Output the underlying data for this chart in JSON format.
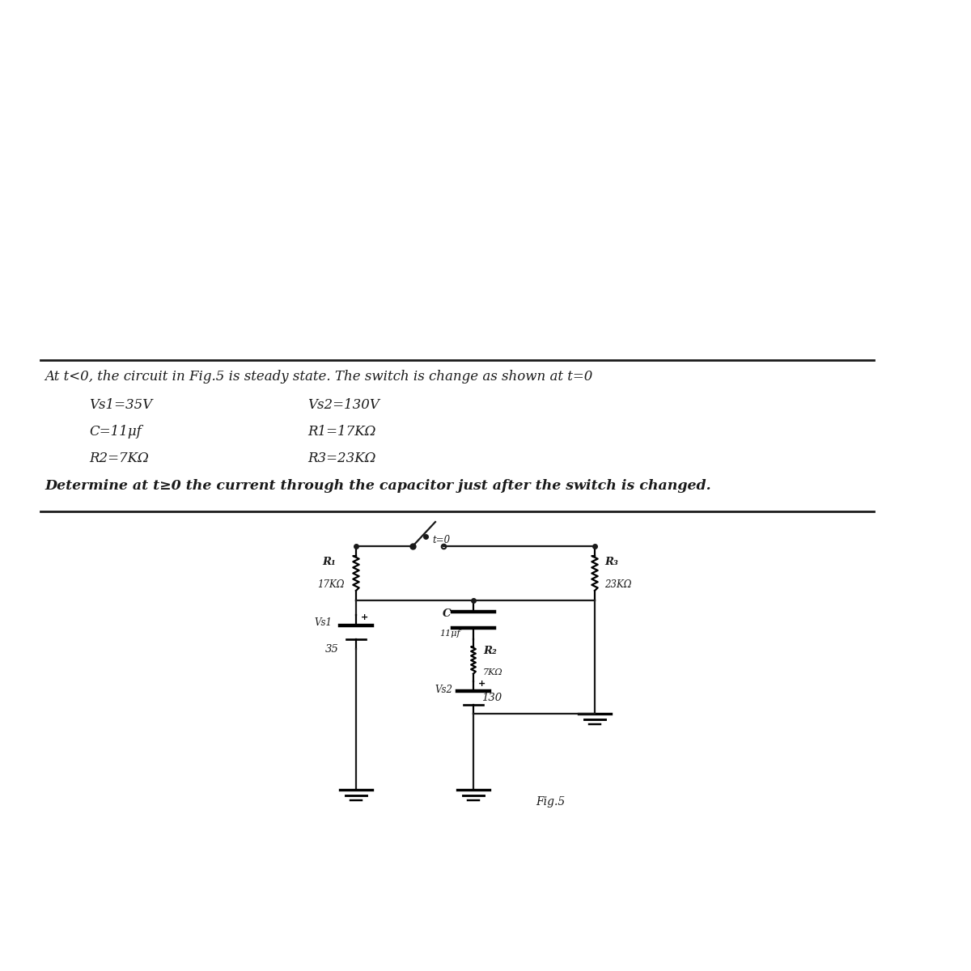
{
  "page_bg": "#ffffff",
  "text_color": "#1a1a1a",
  "line1": "At t<0, the circuit in Fig.5 is steady state. The switch is change as shown at t=0",
  "line2a": "Vs1=35V",
  "line2b": "Vs2=130V",
  "line3a": "C=11μf",
  "line3b": "R1=17KΩ",
  "line4a": "R2=7KΩ",
  "line4b": "R3=23KΩ",
  "line5": "Determine at t≥0 the current through the capacitor just after the switch is changed.",
  "fig_label": "Fig.5",
  "switch_label": "t=0",
  "R1_label": "R₁",
  "R1_val": "17KΩ",
  "C_label": "C",
  "C_val": "11μf",
  "R3_label": "R₃",
  "R3_val": "23KΩ",
  "R2_label": "R₂",
  "R2_val": "7KΩ",
  "Vs1_label": "Vs1",
  "Vs1_val": "35",
  "Vs2_label": "Vs2",
  "Vs2_val": "130",
  "font_size_text": 12,
  "font_size_labels": 10
}
